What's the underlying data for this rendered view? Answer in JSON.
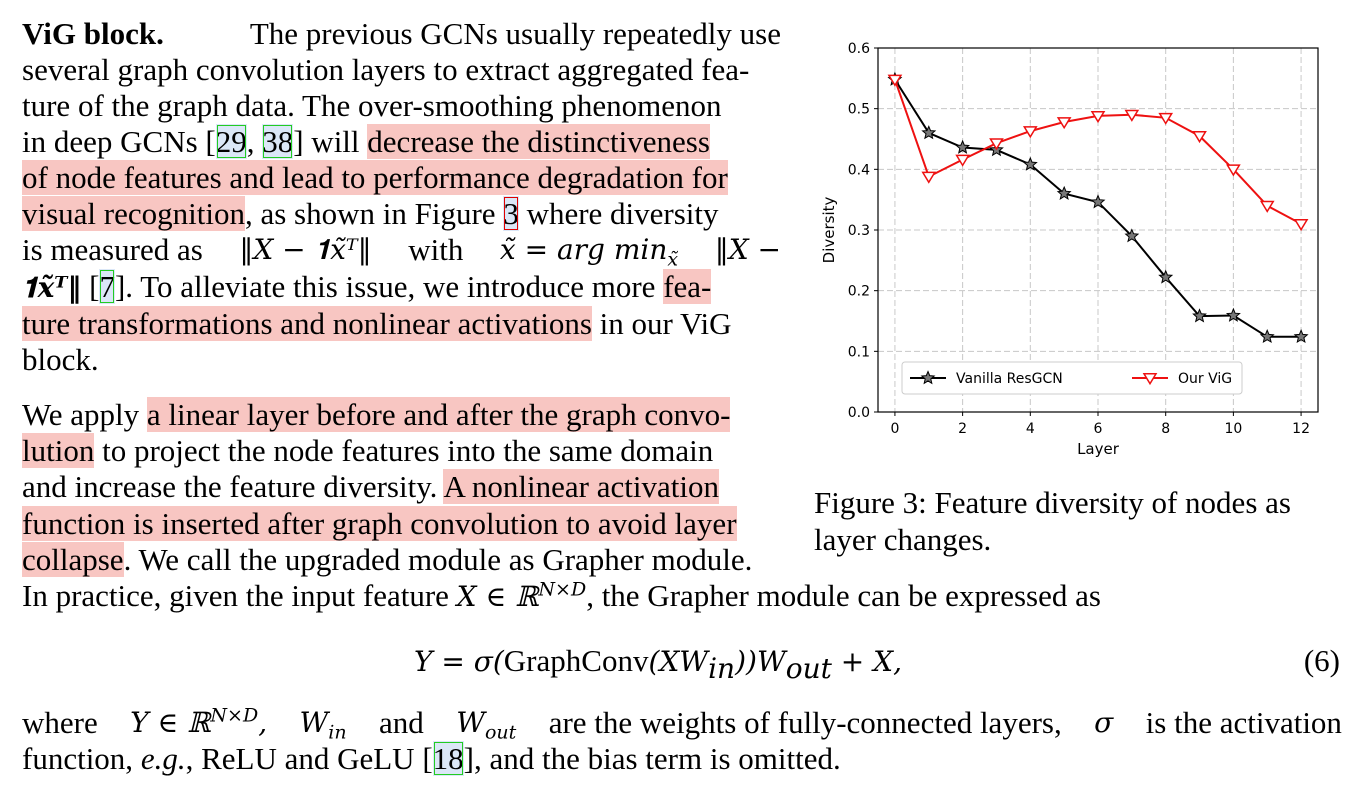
{
  "para1": {
    "heading": "ViG block.",
    "l1": "The previous GCNs usually repeatedly use",
    "l2": "several graph convolution layers to extract aggregated fea-",
    "l3": "ture of the graph data. The over-smoothing phenomenon",
    "l4a": "in deep GCNs [",
    "cite29": "29",
    "l4b": ", ",
    "cite38": "38",
    "l4c": "] will",
    "l4hl": "decrease the distinctiveness",
    "l5hl": "of node features and lead to performance degradation for",
    "l6hl": "visual recognition",
    "l6a": ", as shown in Figure",
    "fig3ref": "3",
    "l6b": "where diversity",
    "l7a": "is measured as",
    "l7m1": "‖X − 𝟏x̃ᵀ‖",
    "l7b": "with",
    "l7m2": "x̃ = arg min",
    "l7m3": "‖X −",
    "l8m": "𝟏x̃ᵀ‖",
    "l8a": "[",
    "cite7": "7",
    "l8b": "]. To alleviate this issue, we introduce more",
    "l8hl": "fea-",
    "l9hl": "ture transformations and nonlinear activations",
    "l9a": "in our ViG",
    "l10": "block."
  },
  "para2": {
    "l1a": "We apply",
    "l1hl": "a linear layer before and after the graph convo-",
    "l2hl": "lution",
    "l2a": "to project the node features into the same domain",
    "l3a": "and increase the feature diversity.",
    "l3hl": "A nonlinear activation",
    "l4hl": "function is inserted after graph convolution to avoid layer",
    "l5hl": "collapse",
    "l5a": ". We call the upgraded module as Grapher module.",
    "l6a": "In practice, given the input feature",
    "l6m": "X ∈ ℝ",
    "l6sup": "N×D",
    "l6b": ", the Grapher module can be expressed as"
  },
  "equation": {
    "text_a": "Y = σ(",
    "text_b": "GraphConv",
    "text_c": "(XW",
    "sub_in": "in",
    "text_d": "))W",
    "sub_out": "out",
    "text_e": " + X,",
    "number": "(6)"
  },
  "para3": {
    "l1a": "where",
    "l1m1": "Y ∈ ℝ",
    "l1sup": "N×D",
    "l1b": ",",
    "l1m2": "W",
    "l1sub1": "in",
    "l1c": "and",
    "l1m3": "W",
    "l1sub2": "out",
    "l1d": "are the weights of fully-connected layers,",
    "l1m4": "σ",
    "l1e": "is the activation",
    "l2a": "function,",
    "l2eg": "e.g.",
    "l2b": ", ReLU and GeLU [",
    "cite18": "18",
    "l2c": "], and the bias term is omitted."
  },
  "caption": "Figure 3: Feature diversity of nodes as layer changes.",
  "chart_data": {
    "type": "line",
    "xlabel": "Layer",
    "ylabel": "Diversity",
    "xlim": [
      -0.5,
      12.5
    ],
    "ylim": [
      0.0,
      0.6
    ],
    "xticks": [
      0,
      2,
      4,
      6,
      8,
      10,
      12
    ],
    "yticks": [
      0.0,
      0.1,
      0.2,
      0.3,
      0.4,
      0.5,
      0.6
    ],
    "grid": true,
    "legend_position": "bottom-center",
    "x": [
      0,
      1,
      2,
      3,
      4,
      5,
      6,
      7,
      8,
      9,
      10,
      11,
      12
    ],
    "series": [
      {
        "name": "Vanilla ResGCN",
        "color": "#000000",
        "marker": "star",
        "values": [
          0.548,
          0.46,
          0.436,
          0.432,
          0.408,
          0.36,
          0.346,
          0.29,
          0.222,
          0.158,
          0.159,
          0.124,
          0.124
        ]
      },
      {
        "name": "Our ViG",
        "color": "#ee1111",
        "marker": "triangle-down",
        "values": [
          0.548,
          0.388,
          0.416,
          0.443,
          0.463,
          0.478,
          0.488,
          0.49,
          0.485,
          0.455,
          0.4,
          0.34,
          0.31
        ]
      }
    ]
  }
}
